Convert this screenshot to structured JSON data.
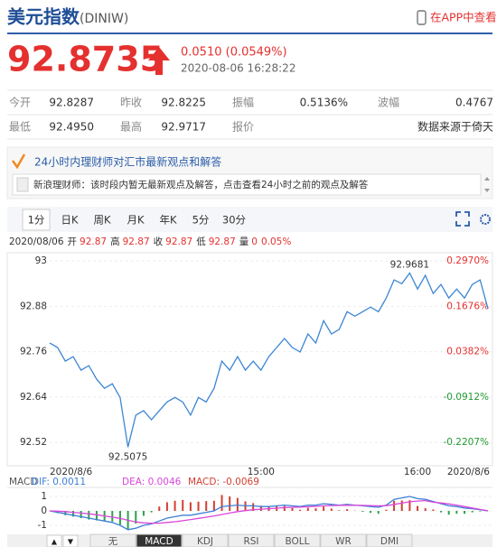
{
  "header": {
    "title": "美元指数",
    "code": "(DINIW)",
    "app_link": "在APP中查看"
  },
  "quote": {
    "price": "92.8735",
    "change": "0.0510 (0.0549%)",
    "time": "2020-08-06 16:28:22"
  },
  "stats": {
    "rows": [
      [
        {
          "label": "今开",
          "value": "92.8287"
        },
        {
          "label": "昨收",
          "value": "92.8225"
        },
        {
          "label": "振幅",
          "value": "0.5136%"
        },
        {
          "label": "波幅",
          "value": "0.4767"
        }
      ],
      [
        {
          "label": "最低",
          "value": "92.4950"
        },
        {
          "label": "最高",
          "value": "92.9717"
        },
        {
          "label": "报价"
        },
        {
          "value": "数据来源于倚天"
        }
      ]
    ]
  },
  "news": {
    "heading": "24小时内理财师对汇市最新观点和解答",
    "message": "新浪理财师：该时段内暂无最新观点及解答，点击查看24小时之前的观点及解答"
  },
  "period_tabs": [
    "1分",
    "日K",
    "周K",
    "月K",
    "年K",
    "5分",
    "30分"
  ],
  "selected_period_index": 0,
  "ohlc_bar": {
    "date": "2020/08/06",
    "items": [
      {
        "label": "开",
        "value": "92.87"
      },
      {
        "label": "高",
        "value": "92.87"
      },
      {
        "label": "收",
        "value": "92.87"
      },
      {
        "label": "低",
        "value": "92.87"
      },
      {
        "label": "量",
        "value": "0"
      }
    ],
    "change": "0.05%"
  },
  "chart_data": [
    {
      "type": "line",
      "categories": [
        "2020/8/6",
        null,
        null,
        null,
        null,
        null,
        null,
        null,
        null,
        null,
        null,
        null,
        null,
        null,
        null,
        null,
        null,
        null,
        null,
        null,
        null,
        null,
        null,
        null,
        null,
        null,
        null,
        "15:00",
        null,
        null,
        null,
        null,
        null,
        null,
        null,
        null,
        null,
        null,
        null,
        null,
        null,
        null,
        null,
        null,
        null,
        null,
        null,
        "16:00",
        null,
        null,
        null,
        null,
        null,
        null,
        null,
        null,
        "2020/8/6"
      ],
      "values": [
        92.783,
        92.771,
        92.735,
        92.747,
        92.711,
        92.723,
        92.687,
        92.663,
        92.675,
        92.639,
        92.5075,
        92.592,
        92.604,
        92.58,
        92.604,
        92.627,
        92.639,
        92.627,
        92.592,
        92.639,
        92.627,
        92.663,
        92.735,
        92.711,
        92.747,
        92.711,
        92.735,
        92.711,
        92.747,
        92.771,
        92.795,
        92.771,
        92.759,
        92.807,
        92.783,
        92.842,
        92.807,
        92.819,
        92.866,
        92.854,
        92.866,
        92.878,
        92.866,
        92.902,
        92.95,
        92.94,
        92.9681,
        92.926,
        92.962,
        92.914,
        92.938,
        92.902,
        92.926,
        92.902,
        92.938,
        92.95,
        92.8735
      ],
      "color": "#3c86d4",
      "ylim": [
        92.47,
        93.01
      ],
      "yticks": [
        93,
        92.88,
        92.76,
        92.64,
        92.52
      ],
      "y2lim": [
        -0.2746,
        0.3078
      ],
      "y2ticks": [
        {
          "value": 0.297,
          "label": "0.2970%"
        },
        {
          "value": 0.1676,
          "label": "0.1676%"
        },
        {
          "value": 0.0382,
          "label": "0.0382%"
        },
        {
          "value": -0.0912,
          "label": "-0.0912%"
        },
        {
          "value": -0.2207,
          "label": "-0.2207%"
        }
      ],
      "up_color": "#e4312f",
      "down_color": "#229933",
      "annotations": [
        92.9681,
        92.5075
      ],
      "grid": true
    },
    {
      "type": "macd",
      "title": "MACD",
      "ylim": [
        -1.625,
        1.625
      ],
      "yticks": [
        1,
        0,
        -1
      ],
      "up_color": "#d23f31",
      "down_color": "#2aa34a",
      "series": [
        {
          "name": "DIF: 0.0011",
          "color": "#3d7fd6",
          "values": [
            0,
            -0.1,
            -0.2,
            -0.3,
            -0.4,
            -0.5,
            -0.6,
            -0.7,
            -0.8,
            -1.0,
            -1.3,
            -1.2,
            -1.0,
            -0.9,
            -0.7,
            -0.5,
            -0.4,
            -0.3,
            -0.3,
            -0.2,
            -0.1,
            0,
            0.3,
            0.35,
            0.4,
            0.35,
            0.35,
            0.3,
            0.3,
            0.35,
            0.4,
            0.35,
            0.3,
            0.4,
            0.4,
            0.5,
            0.45,
            0.4,
            0.45,
            0.4,
            0.35,
            0.3,
            0.25,
            0.4,
            0.8,
            0.9,
            1.0,
            0.85,
            0.8,
            0.65,
            0.5,
            0.35,
            0.3,
            0.2,
            0.15,
            0.08,
            0.0011
          ]
        },
        {
          "name": "DEA: 0.0046",
          "color": "#d946d9",
          "values": [
            0,
            -0.02,
            -0.05,
            -0.1,
            -0.15,
            -0.2,
            -0.27,
            -0.35,
            -0.43,
            -0.52,
            -0.65,
            -0.76,
            -0.83,
            -0.85,
            -0.85,
            -0.8,
            -0.75,
            -0.68,
            -0.6,
            -0.52,
            -0.44,
            -0.35,
            -0.25,
            -0.15,
            -0.05,
            0.02,
            0.08,
            0.12,
            0.15,
            0.19,
            0.23,
            0.25,
            0.26,
            0.29,
            0.31,
            0.35,
            0.37,
            0.38,
            0.39,
            0.39,
            0.38,
            0.37,
            0.35,
            0.36,
            0.45,
            0.54,
            0.63,
            0.68,
            0.71,
            0.6,
            0.55,
            0.48,
            0.4,
            0.3,
            0.2,
            0.1,
            0.0046
          ]
        },
        {
          "name": "MACD: -0.0069",
          "color": "#d23f31",
          "values": [
            0,
            -0.16,
            -0.3,
            -0.4,
            -0.5,
            -0.6,
            -0.66,
            -0.7,
            -0.74,
            -0.96,
            -1.3,
            -0.88,
            -0.34,
            -0.1,
            0.3,
            0.6,
            0.7,
            0.76,
            0.6,
            0.64,
            0.68,
            0.7,
            1.1,
            1.0,
            0.9,
            0.66,
            0.54,
            0.36,
            0.3,
            0.32,
            0.34,
            0.2,
            0.08,
            0.22,
            0.18,
            0.3,
            0.16,
            0.04,
            0.12,
            0.02,
            -0.06,
            -0.14,
            -0.2,
            0.08,
            0.7,
            0.72,
            0.74,
            0.34,
            0.18,
            0.1,
            -0.1,
            -0.26,
            -0.2,
            -0.2,
            -0.1,
            -0.04,
            -0.0069
          ]
        }
      ]
    }
  ],
  "scroll_buttons": [
    "▲",
    "▼"
  ],
  "indicator_tabs": [
    "无",
    "MACD",
    "KDJ",
    "RSI",
    "BOLL",
    "WR",
    "DMI"
  ],
  "selected_indicator_index": 1
}
